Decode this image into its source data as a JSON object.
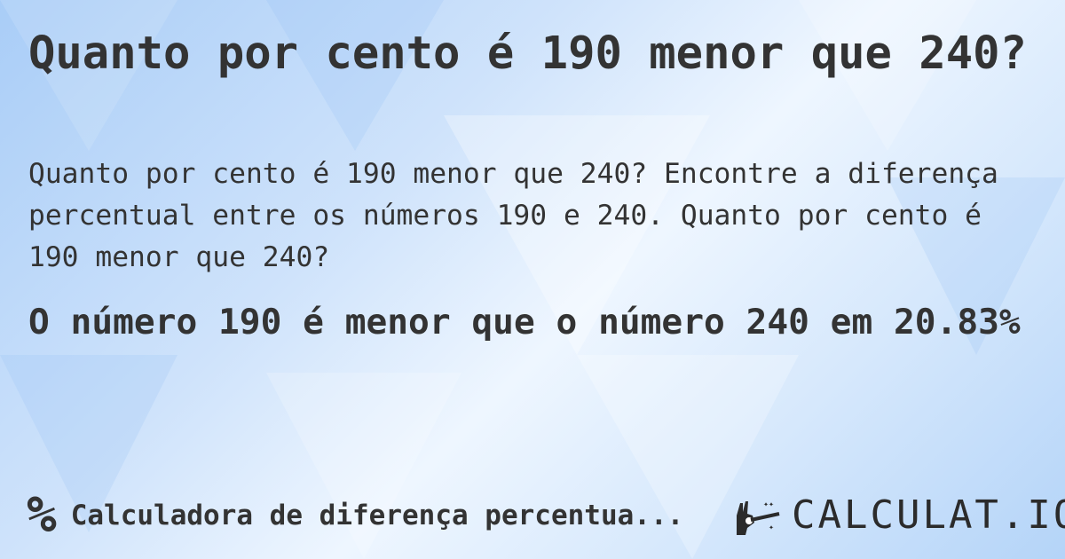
{
  "title": "Quanto por cento é 190 menor que 240?",
  "description": "Quanto por cento é 190 menor que 240? Encontre a diferença percentual entre os números 190 e 240. Quanto por cento é 190 menor que 240?",
  "result": "O número 190 é menor que o número 240 em 20.83%",
  "footer": {
    "icon": "percent-icon",
    "symbol": "%",
    "calculator_link": "Calculadora de diferença percentua..."
  },
  "logo": {
    "text": "CALCULAT.IO",
    "icon": "magic-hand-icon"
  },
  "colors": {
    "text": "#333333",
    "background": "#cfe3fb"
  }
}
